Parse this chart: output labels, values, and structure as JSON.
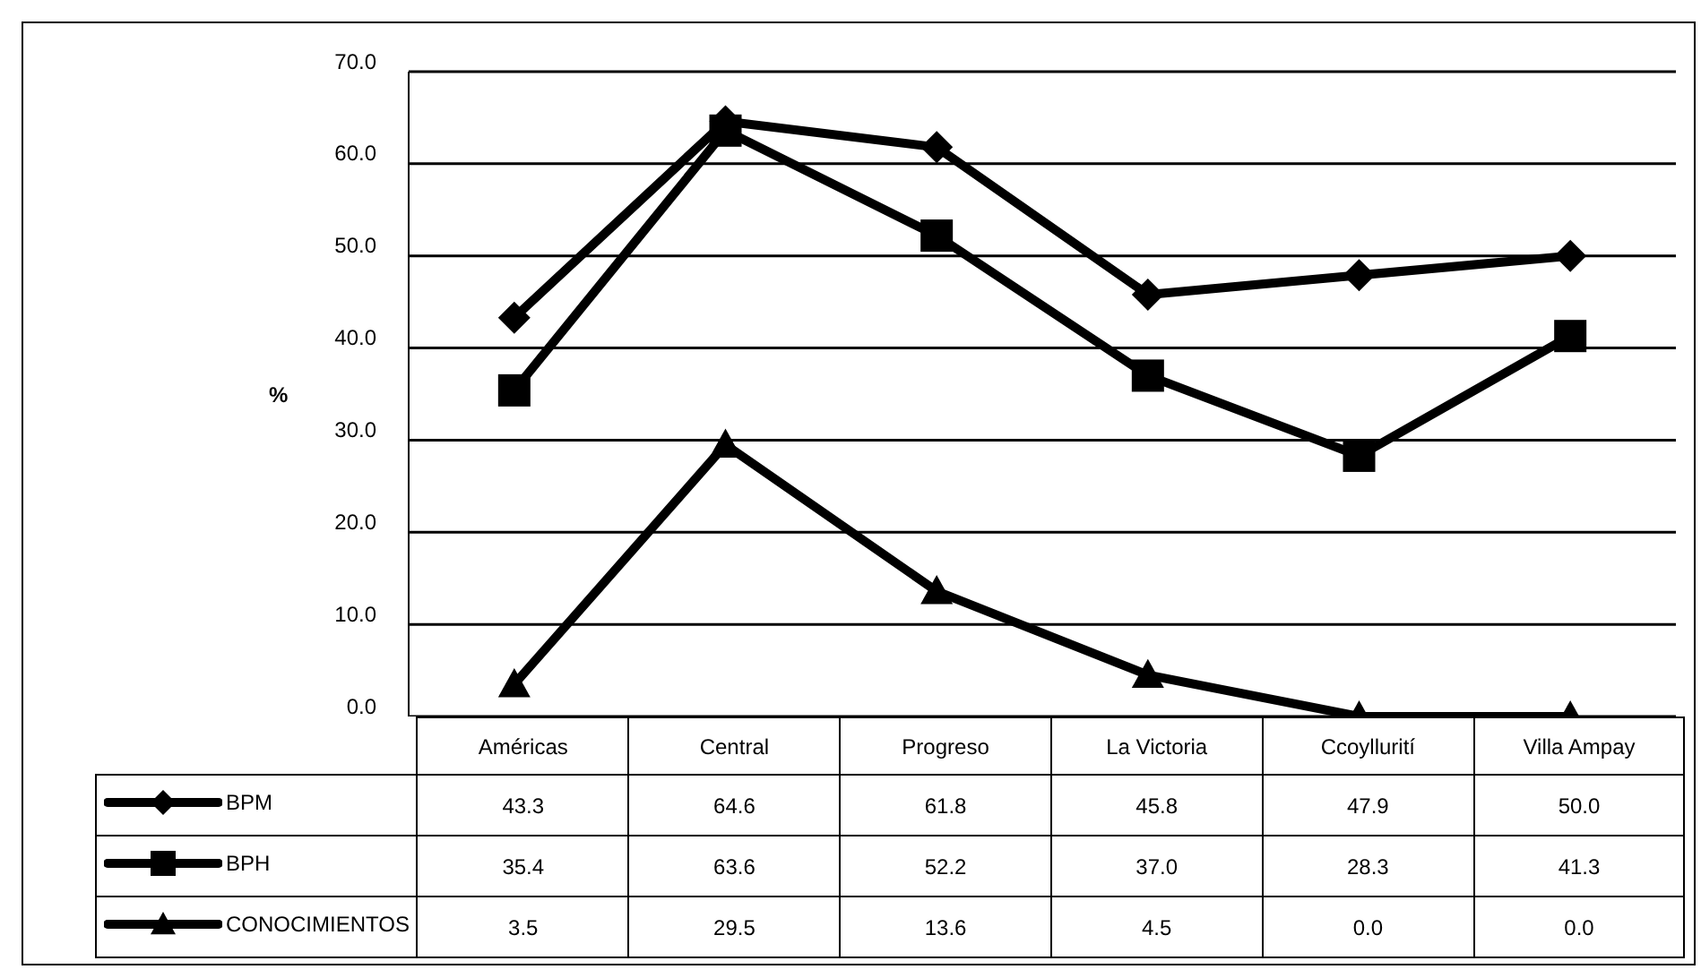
{
  "chart_data": {
    "type": "line",
    "ylabel": "%",
    "categories": [
      "Américas",
      "Central",
      "Progreso",
      "La Victoria",
      "Ccoyllurití",
      "Villa Ampay"
    ],
    "ylim": [
      0,
      70
    ],
    "yticks": [
      {
        "value": 0,
        "label": "0.0"
      },
      {
        "value": 10,
        "label": "10.0"
      },
      {
        "value": 20,
        "label": "20.0"
      },
      {
        "value": 30,
        "label": "30.0"
      },
      {
        "value": 40,
        "label": "40.0"
      },
      {
        "value": 50,
        "label": "50.0"
      },
      {
        "value": 60,
        "label": "60.0"
      },
      {
        "value": 70,
        "label": "70.0"
      }
    ],
    "grid": "y",
    "legend": "bottom left",
    "series": [
      {
        "name": "BPM",
        "color": "#000000",
        "marker": "diamond",
        "values": [
          43.3,
          64.6,
          61.8,
          45.8,
          47.9,
          50.0
        ],
        "value_labels": [
          "43.3",
          "64.6",
          "61.8",
          "45.8",
          "47.9",
          "50.0"
        ]
      },
      {
        "name": "BPH",
        "color": "#000000",
        "marker": "square",
        "values": [
          35.4,
          63.6,
          52.2,
          37.0,
          28.3,
          41.3
        ],
        "value_labels": [
          "35.4",
          "63.6",
          "52.2",
          "37.0",
          "28.3",
          "41.3"
        ]
      },
      {
        "name": "CONOCIMIENTOS",
        "color": "#000000",
        "marker": "triangle",
        "values": [
          3.5,
          29.5,
          13.6,
          4.5,
          0.0,
          0.0
        ],
        "value_labels": [
          "3.5",
          "29.5",
          "13.6",
          "4.5",
          "0.0",
          "0.0"
        ]
      }
    ]
  }
}
